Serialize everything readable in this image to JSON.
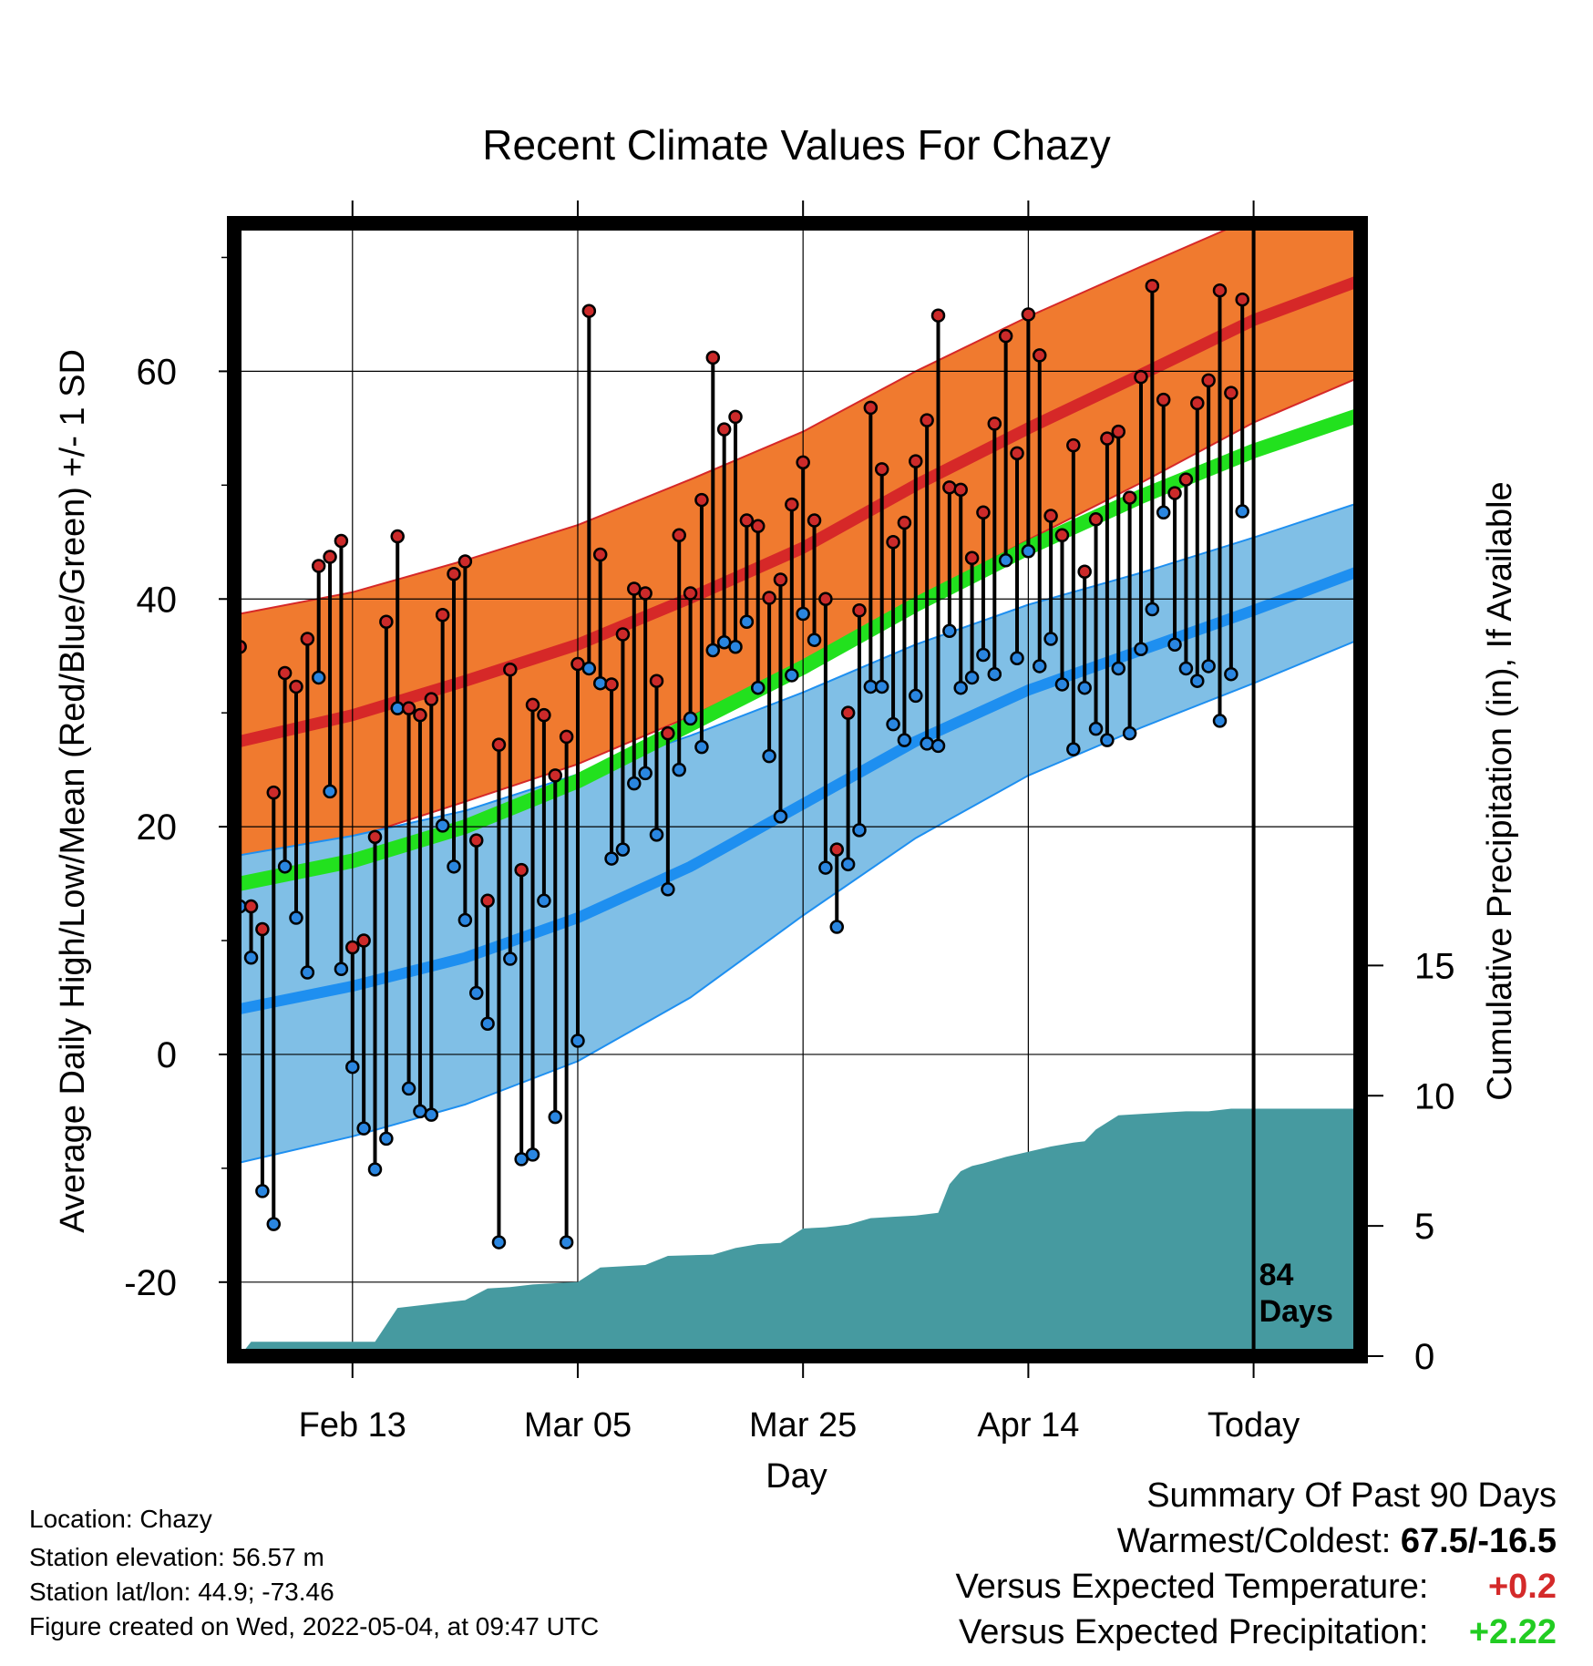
{
  "info": {
    "location": "Location: Chazy",
    "elevation": "Station elevation: 56.57 m",
    "latlon": "Station lat/lon: 44.9; -73.46",
    "created": "Figure created on Wed, 2022-05-04, at 09:47 UTC"
  },
  "summary": {
    "title": "Summary Of Past 90 Days",
    "warm_cold_label": "Warmest/Coldest:",
    "warm_cold_value": "67.5/-16.5",
    "temp_label": "Versus Expected Temperature:",
    "temp_value": "+0.2",
    "precip_label": "Versus Expected Precipitation:",
    "precip_value": "+2.22"
  },
  "chart_data": {
    "type": "line",
    "title": "Recent Climate Values For Chazy",
    "xlabel": "Day",
    "ylabel": "Average Daily High/Low/Mean (Red/Blue/Green) +/- 1 SD",
    "y2label": "Cumulative Precipitation (in), If Available",
    "x_ticks": [
      {
        "day": 10,
        "label": "Feb 13"
      },
      {
        "day": 30,
        "label": "Mar 05"
      },
      {
        "day": 50,
        "label": "Mar 25"
      },
      {
        "day": 70,
        "label": "Apr 14"
      },
      {
        "day": 90,
        "label": "Today"
      }
    ],
    "xlim": [
      -0.5,
      99.5
    ],
    "ylim": [
      -26.5,
      73
    ],
    "y_ticks": [
      -20,
      0,
      20,
      40,
      60
    ],
    "y2lim": [
      0,
      43.5
    ],
    "y2_ticks": [
      0,
      5,
      10,
      15
    ],
    "today_label": "84\nDays",
    "grid": true,
    "colors": {
      "high_band": "#f07a2f",
      "high_mean": "#d62828",
      "low_band": "#80bfe6",
      "low_mean": "#1e8ff0",
      "avg_mean": "#22e11e",
      "precip": "#469aa0",
      "high_marker": "#cc2a2a",
      "low_marker": "#2a86e0"
    },
    "normals": {
      "days": [
        0,
        10,
        20,
        30,
        40,
        50,
        60,
        70,
        80,
        90,
        99.5
      ],
      "high_mean": [
        27.5,
        29.8,
        32.8,
        36.0,
        40.1,
        44.5,
        50.0,
        55.0,
        59.7,
        64.5,
        68.0
      ],
      "high_sd": [
        11.2,
        10.8,
        10.6,
        10.5,
        10.4,
        10.2,
        10.0,
        9.8,
        9.5,
        9.0,
        8.5
      ],
      "avg_mean": [
        15.0,
        17.0,
        20.0,
        24.0,
        29.0,
        34.0,
        39.5,
        44.5,
        49.0,
        53.0,
        56.2
      ],
      "low_mean": [
        4.0,
        6.0,
        8.5,
        12.0,
        16.5,
        22.0,
        27.5,
        32.0,
        35.5,
        39.0,
        42.5
      ],
      "low_sd": [
        13.5,
        13.2,
        12.9,
        12.6,
        11.5,
        9.8,
        8.5,
        7.5,
        6.8,
        6.4,
        6.0
      ]
    },
    "daily": {
      "days": [
        0,
        1,
        2,
        3,
        4,
        5,
        6,
        7,
        8,
        9,
        10,
        11,
        12,
        13,
        14,
        15,
        16,
        17,
        18,
        19,
        20,
        21,
        22,
        23,
        24,
        25,
        26,
        27,
        28,
        29,
        30,
        31,
        32,
        33,
        34,
        35,
        36,
        37,
        38,
        39,
        40,
        41,
        42,
        43,
        44,
        45,
        46,
        47,
        48,
        49,
        50,
        51,
        52,
        53,
        54,
        55,
        56,
        57,
        58,
        59,
        60,
        61,
        62,
        63,
        64,
        65,
        66,
        67,
        68,
        69,
        70,
        71,
        72,
        73,
        74,
        75,
        76,
        77,
        78,
        79,
        80,
        81,
        82,
        83,
        84,
        85,
        86,
        87,
        88,
        89
      ],
      "high": [
        35.8,
        13.0,
        11.0,
        23.0,
        33.5,
        32.3,
        36.5,
        42.9,
        43.7,
        45.1,
        9.4,
        10.0,
        19.1,
        38.0,
        45.5,
        30.4,
        29.8,
        31.2,
        38.6,
        42.2,
        43.3,
        18.8,
        13.5,
        27.2,
        33.8,
        16.2,
        30.7,
        29.8,
        24.5,
        27.9,
        34.3,
        65.3,
        43.9,
        32.5,
        36.9,
        40.9,
        40.5,
        32.8,
        28.2,
        45.6,
        40.5,
        48.7,
        61.2,
        54.9,
        56.0,
        46.9,
        46.4,
        40.1,
        41.7,
        48.3,
        52.0,
        46.9,
        40.0,
        18.0,
        30.0,
        39.0,
        56.8,
        51.4,
        45.0,
        46.7,
        52.1,
        55.7,
        64.9,
        49.8,
        49.6,
        43.6,
        47.6,
        55.4,
        63.1,
        52.8,
        65.0,
        61.4,
        47.3,
        45.6,
        53.5,
        42.4,
        47.0,
        54.1,
        54.7,
        48.9,
        59.5,
        67.5,
        57.5,
        49.3,
        50.5,
        57.2,
        59.2,
        67.1,
        58.1,
        66.3
      ],
      "low": [
        13.0,
        8.5,
        -12.0,
        -14.9,
        16.5,
        12.0,
        7.2,
        33.1,
        23.1,
        7.5,
        -1.1,
        -6.5,
        -10.1,
        -7.4,
        30.4,
        -3.0,
        -5.0,
        -5.3,
        20.1,
        16.5,
        11.8,
        5.4,
        2.7,
        -16.5,
        8.4,
        -9.2,
        -8.8,
        13.5,
        -5.5,
        -16.5,
        1.2,
        33.9,
        32.6,
        17.2,
        18.0,
        23.8,
        24.7,
        19.3,
        14.5,
        25.0,
        29.5,
        27.0,
        35.5,
        36.2,
        35.8,
        38.0,
        32.2,
        26.2,
        20.9,
        33.3,
        38.7,
        36.4,
        16.4,
        11.2,
        16.7,
        19.7,
        32.3,
        32.3,
        29.0,
        27.6,
        31.5,
        27.3,
        27.1,
        37.2,
        32.2,
        33.1,
        35.1,
        33.4,
        43.4,
        34.8,
        44.2,
        34.1,
        36.5,
        32.5,
        26.8,
        32.2,
        28.6,
        27.6,
        33.9,
        28.2,
        35.6,
        39.1,
        47.6,
        36.0,
        33.9,
        32.8,
        34.1,
        29.3,
        33.4,
        47.7
      ]
    },
    "precip": {
      "days": [
        0,
        1,
        12,
        14,
        16,
        18,
        20,
        22,
        24,
        26,
        30,
        32,
        36,
        38,
        42,
        44,
        46,
        48,
        50,
        52,
        54,
        56,
        58,
        60,
        62,
        63,
        64,
        65,
        66,
        68,
        70,
        72,
        74,
        75,
        76,
        78,
        80,
        82,
        84,
        86,
        88,
        90,
        92,
        95,
        99.5
      ],
      "values": [
        0,
        0.55,
        0.55,
        1.85,
        1.95,
        2.05,
        2.15,
        2.6,
        2.65,
        2.75,
        2.85,
        3.4,
        3.5,
        3.85,
        3.9,
        4.15,
        4.3,
        4.35,
        4.9,
        4.95,
        5.05,
        5.3,
        5.35,
        5.4,
        5.5,
        6.6,
        7.1,
        7.3,
        7.4,
        7.65,
        7.85,
        8.05,
        8.2,
        8.25,
        8.7,
        9.25,
        9.3,
        9.35,
        9.4,
        9.4,
        9.5,
        9.5,
        9.5,
        9.5,
        9.5
      ]
    }
  }
}
